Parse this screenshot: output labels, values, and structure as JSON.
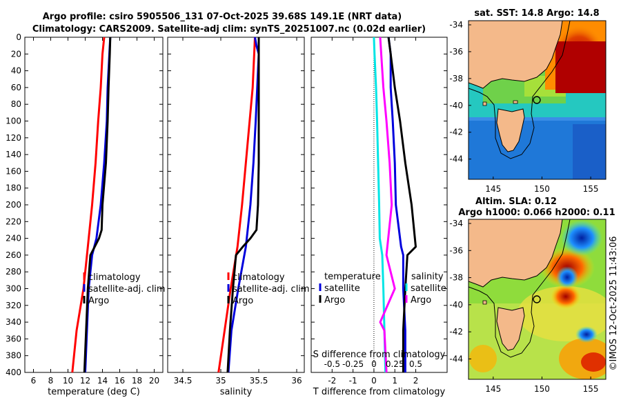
{
  "title": {
    "line1": "Argo profile: csiro 5905506_131 07-Oct-2025 39.68S 149.1E (NRT data)",
    "line2": "Climatology: CARS2009. Satellite-adj clim: synTS_20251007.nc (0.02d earlier)"
  },
  "colors": {
    "climatology": "#ff0000",
    "satellite": "#0000dd",
    "argo": "#000000",
    "sal_satellite": "#00e5e5",
    "sal_diff": "#ff00ff"
  },
  "chart_data": [
    {
      "type": "line",
      "name": "temperature-profile",
      "xlabel": "temperature (deg C)",
      "ylabel": "",
      "xlim": [
        5,
        21
      ],
      "ylim": [
        400,
        0
      ],
      "xticks": [
        "6",
        "8",
        "10",
        "12",
        "14",
        "16",
        "18",
        "20"
      ],
      "xtick_values": [
        6,
        8,
        10,
        12,
        14,
        16,
        18,
        20
      ],
      "yticks": [
        "0",
        "20",
        "40",
        "60",
        "80",
        "100",
        "120",
        "140",
        "160",
        "180",
        "200",
        "220",
        "240",
        "260",
        "280",
        "300",
        "320",
        "340",
        "360",
        "380",
        "400"
      ],
      "ytick_values": [
        0,
        20,
        40,
        60,
        80,
        100,
        120,
        140,
        160,
        180,
        200,
        220,
        240,
        260,
        280,
        300,
        320,
        340,
        360,
        380,
        400
      ],
      "legend": [
        "climatology",
        "satellite-adj. clim",
        "Argo"
      ],
      "series": [
        {
          "name": "climatology",
          "color": "#ff0000",
          "depth": [
            0,
            20,
            60,
            100,
            150,
            200,
            250,
            300,
            350,
            400
          ],
          "values": [
            14.2,
            14.0,
            13.8,
            13.5,
            13.2,
            12.8,
            12.3,
            11.8,
            11.0,
            10.5
          ]
        },
        {
          "name": "satellite-adj. clim",
          "color": "#0000dd",
          "depth": [
            0,
            20,
            60,
            100,
            150,
            200,
            240,
            260,
            300,
            350,
            400
          ],
          "values": [
            14.9,
            14.8,
            14.6,
            14.5,
            14.2,
            13.8,
            13.3,
            12.8,
            12.4,
            12.2,
            12.0
          ]
        },
        {
          "name": "Argo",
          "color": "#000000",
          "depth": [
            0,
            20,
            60,
            100,
            150,
            200,
            230,
            240,
            250,
            260,
            300,
            350,
            400
          ],
          "values": [
            14.9,
            14.85,
            14.7,
            14.6,
            14.4,
            14.0,
            13.9,
            13.6,
            13.1,
            12.6,
            12.3,
            12.1,
            11.9
          ]
        }
      ]
    },
    {
      "type": "line",
      "name": "salinity-profile",
      "xlabel": "salinity",
      "xlim": [
        34.3,
        36.1
      ],
      "ylim": [
        400,
        0
      ],
      "xticks": [
        "34.5",
        "35",
        "35.5",
        "36"
      ],
      "xtick_values": [
        34.5,
        35,
        35.5,
        36
      ],
      "legend": [
        "climatology",
        "satellite-adj. clim",
        "Argo"
      ],
      "series": [
        {
          "name": "climatology",
          "color": "#ff0000",
          "depth": [
            0,
            20,
            60,
            100,
            150,
            200,
            250,
            300,
            350,
            400
          ],
          "values": [
            35.45,
            35.44,
            35.42,
            35.38,
            35.33,
            35.28,
            35.22,
            35.13,
            35.05,
            34.97
          ]
        },
        {
          "name": "satellite-adj. clim",
          "color": "#0000dd",
          "depth": [
            0,
            10,
            20,
            60,
            100,
            150,
            200,
            250,
            300,
            350,
            400
          ],
          "values": [
            35.45,
            35.47,
            35.5,
            35.48,
            35.46,
            35.43,
            35.39,
            35.33,
            35.23,
            35.14,
            35.1
          ]
        },
        {
          "name": "Argo",
          "color": "#000000",
          "depth": [
            0,
            60,
            100,
            150,
            200,
            230,
            240,
            250,
            260,
            300,
            350,
            400
          ],
          "values": [
            35.5,
            35.5,
            35.5,
            35.5,
            35.49,
            35.47,
            35.39,
            35.29,
            35.2,
            35.16,
            35.12,
            35.09
          ]
        }
      ]
    },
    {
      "type": "line",
      "name": "difference-profile",
      "xlabel": "T difference from climatology",
      "xlabel_top": "S difference from climatology",
      "xlim": [
        -3,
        3.5
      ],
      "ylim": [
        400,
        0
      ],
      "xticks": [
        "-2",
        "-1",
        "0",
        "1",
        "2"
      ],
      "xtick_values": [
        -2,
        -1,
        0,
        1,
        2
      ],
      "xticks_top": [
        "-0.5",
        "-0.25",
        "0",
        "0.25",
        "0.5"
      ],
      "xtick_top_positions": [
        -2,
        -1,
        0,
        1,
        2
      ],
      "legend_temperature": [
        "temperature",
        "satellite",
        "Argo"
      ],
      "legend_salinity": [
        "salinity",
        "satellite",
        "Argo"
      ],
      "series": [
        {
          "name": "T satellite",
          "color": "#0000dd",
          "depth": [
            0,
            20,
            60,
            100,
            150,
            200,
            250,
            260,
            300,
            350,
            400
          ],
          "values": [
            0.7,
            0.8,
            0.8,
            0.9,
            1.0,
            1.05,
            1.3,
            1.4,
            1.4,
            1.5,
            1.5
          ]
        },
        {
          "name": "T Argo",
          "color": "#000000",
          "depth": [
            0,
            20,
            60,
            100,
            150,
            200,
            250,
            260,
            300,
            350,
            400
          ],
          "values": [
            0.7,
            0.8,
            1.0,
            1.25,
            1.5,
            1.8,
            2.0,
            1.6,
            1.5,
            1.4,
            1.4
          ]
        },
        {
          "name": "S satellite",
          "color": "#00e5e5",
          "depth": [
            0,
            20,
            60,
            100,
            150,
            200,
            240,
            260,
            300,
            350,
            400
          ],
          "values": [
            0.0,
            0.03,
            0.1,
            0.15,
            0.2,
            0.25,
            0.28,
            0.4,
            0.45,
            0.5,
            0.55
          ]
        },
        {
          "name": "S Argo",
          "color": "#ff00ff",
          "depth": [
            0,
            20,
            60,
            100,
            150,
            200,
            260,
            300,
            340,
            350,
            400
          ],
          "values": [
            0.3,
            0.35,
            0.45,
            0.6,
            0.75,
            0.85,
            0.6,
            1.0,
            0.3,
            0.5,
            0.6
          ]
        }
      ]
    }
  ],
  "maps": [
    {
      "name": "sst-map",
      "title": "sat. SST: 14.8 Argo: 14.8",
      "xticks": [
        "145",
        "150",
        "155"
      ],
      "yticks": [
        "-34",
        "-36",
        "-38",
        "-40",
        "-42",
        "-44"
      ]
    },
    {
      "name": "sla-map",
      "title_line1": "Altim. SLA: 0.12",
      "title_line2": "Argo h1000: 0.066 h2000: 0.11",
      "xticks": [
        "145",
        "150",
        "155"
      ],
      "yticks": [
        "-34",
        "-36",
        "-38",
        "-40",
        "-42",
        "-44"
      ]
    }
  ],
  "credit": "©IMOS 12-Oct-2025 11:43:06"
}
